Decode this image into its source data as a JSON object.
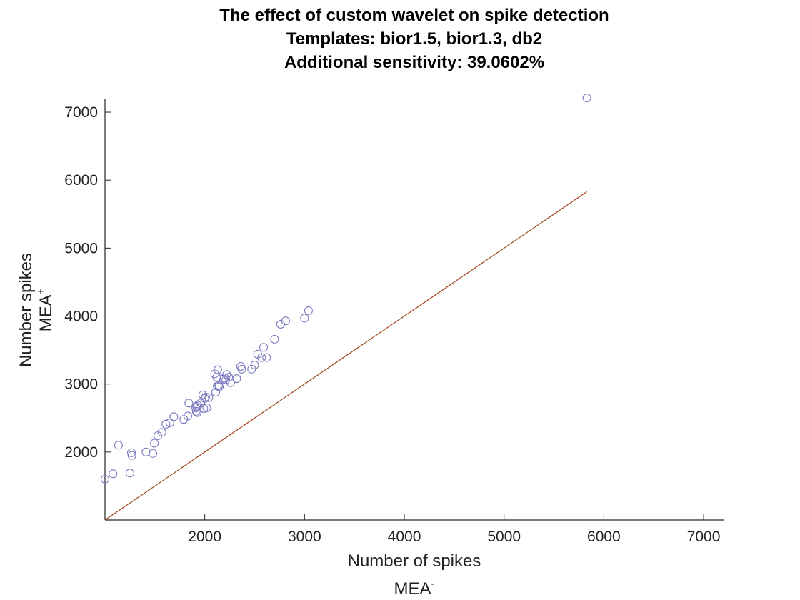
{
  "chart_data": {
    "type": "scatter",
    "title": [
      "The effect of custom wavelet on spike detection",
      "Templates: bior1.5, bior1.3, db2",
      "Additional sensitivity: 39.0602%"
    ],
    "xlabel": "Number of spikes",
    "xlabel_sub": "MEA",
    "xlabel_sup": "-",
    "ylabel": "Number spikes",
    "ylabel_sub": "MEA",
    "ylabel_sup": "+",
    "xlim": [
      1000,
      7200
    ],
    "ylim": [
      1000,
      7200
    ],
    "xticks": [
      2000,
      3000,
      4000,
      5000,
      6000,
      7000
    ],
    "yticks": [
      2000,
      3000,
      4000,
      5000,
      6000,
      7000
    ],
    "grid": false,
    "colors": {
      "points": "#7b7bc0",
      "identity_line": "#a0421a"
    },
    "reference_line": {
      "x": [
        1000,
        5830
      ],
      "y": [
        1000,
        5830
      ]
    },
    "points": {
      "x": [
        1000,
        1080,
        1135,
        1250,
        1265,
        1270,
        1410,
        1480,
        1495,
        1530,
        1570,
        1610,
        1650,
        1690,
        1790,
        1830,
        1840,
        1910,
        1915,
        1920,
        1925,
        1930,
        1960,
        1980,
        1990,
        2000,
        2010,
        2020,
        2040,
        2100,
        2110,
        2120,
        2125,
        2130,
        2140,
        2145,
        2190,
        2200,
        2210,
        2220,
        2240,
        2260,
        2320,
        2360,
        2370,
        2470,
        2500,
        2530,
        2570,
        2590,
        2620,
        2700,
        2760,
        2810,
        3000,
        3040,
        5830
      ],
      "y": [
        1600,
        1680,
        2100,
        1690,
        1990,
        1950,
        2000,
        1980,
        2130,
        2240,
        2290,
        2410,
        2430,
        2520,
        2480,
        2530,
        2720,
        2650,
        2600,
        2670,
        2580,
        2690,
        2720,
        2840,
        2640,
        2790,
        2810,
        2650,
        2800,
        3150,
        2880,
        3100,
        2970,
        3210,
        2980,
        2960,
        3070,
        3090,
        3060,
        3140,
        3100,
        3020,
        3080,
        3260,
        3220,
        3220,
        3280,
        3440,
        3390,
        3540,
        3390,
        3660,
        3880,
        3930,
        3970,
        4080,
        7210
      ]
    }
  }
}
